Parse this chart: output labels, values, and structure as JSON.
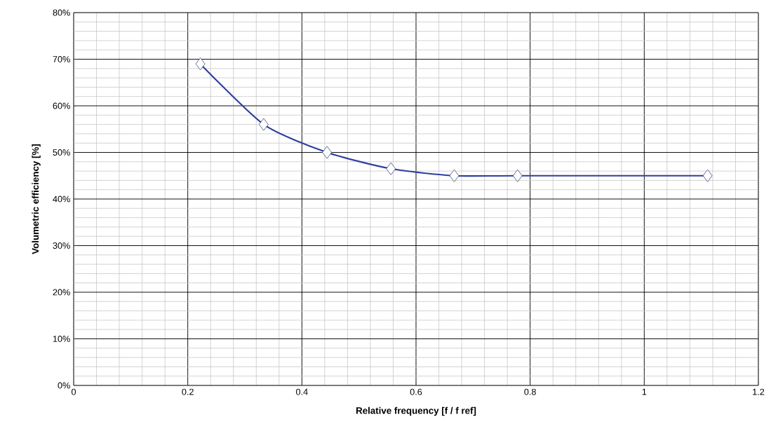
{
  "chart_data": {
    "type": "line",
    "xlabel": "Relative frequency [f / f ref]",
    "ylabel": "Volumetric efficiency [%]",
    "x": [
      0.222,
      0.333,
      0.444,
      0.556,
      0.667,
      0.778,
      1.111
    ],
    "series": [
      {
        "color": "#2e3f9e",
        "values": [
          69,
          56,
          50,
          46.5,
          45,
          45,
          45
        ]
      }
    ],
    "marker": "diamond",
    "line_style": "solid",
    "grid": true,
    "xlim": [
      0,
      1.2
    ],
    "xticks": [
      0,
      0.2,
      0.4,
      0.6,
      0.8,
      1,
      1.2
    ],
    "ylim": [
      0,
      80
    ],
    "yticks": [
      {
        "value": 0,
        "label": "0%"
      },
      {
        "value": 10,
        "label": "10%"
      },
      {
        "value": 20,
        "label": "20%"
      },
      {
        "value": 30,
        "label": "30%"
      },
      {
        "value": 40,
        "label": "40%"
      },
      {
        "value": 50,
        "label": "50%"
      },
      {
        "value": 60,
        "label": "60%"
      },
      {
        "value": 70,
        "label": "70%"
      },
      {
        "value": 80,
        "label": "80%"
      }
    ]
  }
}
